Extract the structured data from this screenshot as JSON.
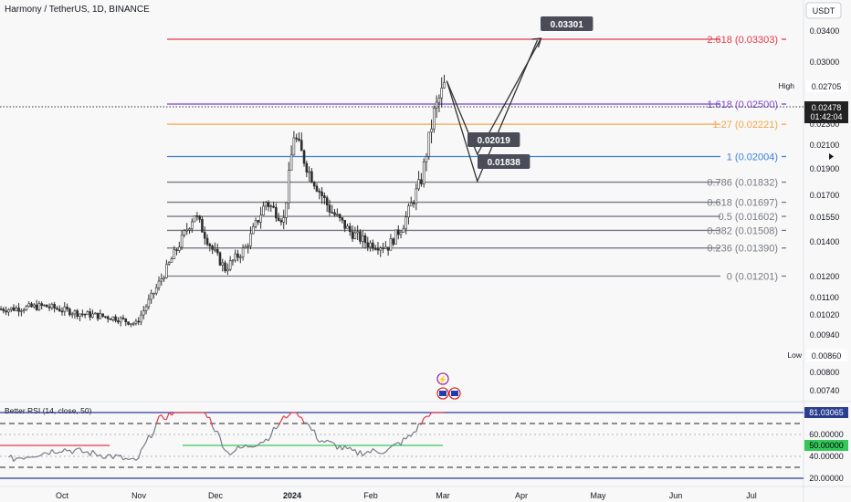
{
  "symbol_title": "Harmony / TetherUS, 1D, BINANCE",
  "currency_button": "USDT",
  "high_label": "High",
  "high_value": "0.02705",
  "low_label": "Low",
  "low_value": "0.00860",
  "last_price": "0.02478",
  "countdown": "01:42:04",
  "colors": {
    "up": "#2e2e2e",
    "down": "#2e2e2e",
    "fib_red": "#e3384b",
    "fib_purple": "#7c45c8",
    "fib_orange": "#f5a545",
    "fib_blue": "#3b82d8",
    "fib_gray": "#787b86",
    "rsi_red": "#e3384b",
    "rsi_green": "#34c759",
    "rsi_blue": "#2a3d8f"
  },
  "chart_data": {
    "type": "candlestick",
    "price_axis_ticks": [
      "0.03400",
      "0.03000",
      "0.02300",
      "0.02100",
      "0.01900",
      "0.01700",
      "0.01550",
      "0.01400",
      "0.01200",
      "0.01100",
      "0.01020",
      "0.00940",
      "0.00800",
      "0.00740"
    ],
    "time_axis_labels": [
      "Oct",
      "Nov",
      "Dec",
      "2024",
      "Feb",
      "Mar",
      "Apr",
      "May",
      "Jun",
      "Jul"
    ],
    "fib_levels": [
      {
        "label": "0 (0.01201)",
        "ratio": 0,
        "value": 0.01201,
        "color": "gray"
      },
      {
        "label": "0.236 (0.01390)",
        "ratio": 0.236,
        "value": 0.0139,
        "color": "gray"
      },
      {
        "label": "0.382 (0.01508)",
        "ratio": 0.382,
        "value": 0.01508,
        "color": "gray"
      },
      {
        "label": "0.5 (0.01602)",
        "ratio": 0.5,
        "value": 0.01602,
        "color": "gray"
      },
      {
        "label": "0.618 (0.01697)",
        "ratio": 0.618,
        "value": 0.01697,
        "color": "gray"
      },
      {
        "label": "0.786 (0.01832)",
        "ratio": 0.786,
        "value": 0.01832,
        "color": "gray"
      },
      {
        "label": "1 (0.02004)",
        "ratio": 1,
        "value": 0.02004,
        "color": "blue"
      },
      {
        "label": "1.27 (0.02221)",
        "ratio": 1.27,
        "value": 0.02221,
        "color": "orange"
      },
      {
        "label": "1.618 (0.02500)",
        "ratio": 1.618,
        "value": 0.025,
        "color": "purple"
      },
      {
        "label": "2.618 (0.03303)",
        "ratio": 2.618,
        "value": 0.03303,
        "color": "red"
      }
    ],
    "projection_labels": [
      "0.03301",
      "0.02019",
      "0.01838"
    ],
    "price_series": [
      {
        "date": "2023-09-10",
        "close": 0.0098
      },
      {
        "date": "2023-09-24",
        "close": 0.01
      },
      {
        "date": "2023-10-08",
        "close": 0.0095
      },
      {
        "date": "2023-10-22",
        "close": 0.0092
      },
      {
        "date": "2023-10-30",
        "close": 0.0088
      },
      {
        "date": "2023-11-07",
        "close": 0.0112
      },
      {
        "date": "2023-11-15",
        "close": 0.0138
      },
      {
        "date": "2023-11-22",
        "close": 0.0162
      },
      {
        "date": "2023-11-29",
        "close": 0.0138
      },
      {
        "date": "2023-12-04",
        "close": 0.0125
      },
      {
        "date": "2023-12-12",
        "close": 0.0139
      },
      {
        "date": "2023-12-20",
        "close": 0.017
      },
      {
        "date": "2023-12-27",
        "close": 0.0158
      },
      {
        "date": "2023-12-31",
        "close": 0.0215
      },
      {
        "date": "2024-01-06",
        "close": 0.019
      },
      {
        "date": "2024-01-14",
        "close": 0.0165
      },
      {
        "date": "2024-01-22",
        "close": 0.015
      },
      {
        "date": "2024-01-29",
        "close": 0.0142
      },
      {
        "date": "2024-02-06",
        "close": 0.014
      },
      {
        "date": "2024-02-12",
        "close": 0.0155
      },
      {
        "date": "2024-02-19",
        "close": 0.0185
      },
      {
        "date": "2024-02-24",
        "close": 0.023
      },
      {
        "date": "2024-02-28",
        "close": 0.02478
      }
    ],
    "projection_path": [
      {
        "date": "2024-02-29",
        "value": 0.025
      },
      {
        "date": "2024-03-12",
        "value": 0.02019
      },
      {
        "date": "2024-04-06",
        "value": 0.03301
      },
      {
        "date": "2024-03-12",
        "value": 0.01838
      }
    ],
    "rsi": {
      "title": "Better RSI (14, close, 50)",
      "current": "81.03065",
      "midline_label": "50.00000",
      "axis_ticks": [
        "60.00000",
        "40.00000",
        "20.00000"
      ],
      "values": [
        {
          "date": "2023-09-10",
          "value": 40
        },
        {
          "date": "2023-10-01",
          "value": 48
        },
        {
          "date": "2023-10-22",
          "value": 42
        },
        {
          "date": "2023-10-30",
          "value": 38
        },
        {
          "date": "2023-11-08",
          "value": 70
        },
        {
          "date": "2023-11-18",
          "value": 80
        },
        {
          "date": "2023-11-26",
          "value": 78
        },
        {
          "date": "2023-12-05",
          "value": 45
        },
        {
          "date": "2023-12-20",
          "value": 55
        },
        {
          "date": "2023-12-31",
          "value": 80
        },
        {
          "date": "2024-01-10",
          "value": 55
        },
        {
          "date": "2024-01-24",
          "value": 45
        },
        {
          "date": "2024-02-06",
          "value": 47
        },
        {
          "date": "2024-02-15",
          "value": 58
        },
        {
          "date": "2024-02-24",
          "value": 80
        },
        {
          "date": "2024-02-28",
          "value": 81
        }
      ]
    }
  }
}
